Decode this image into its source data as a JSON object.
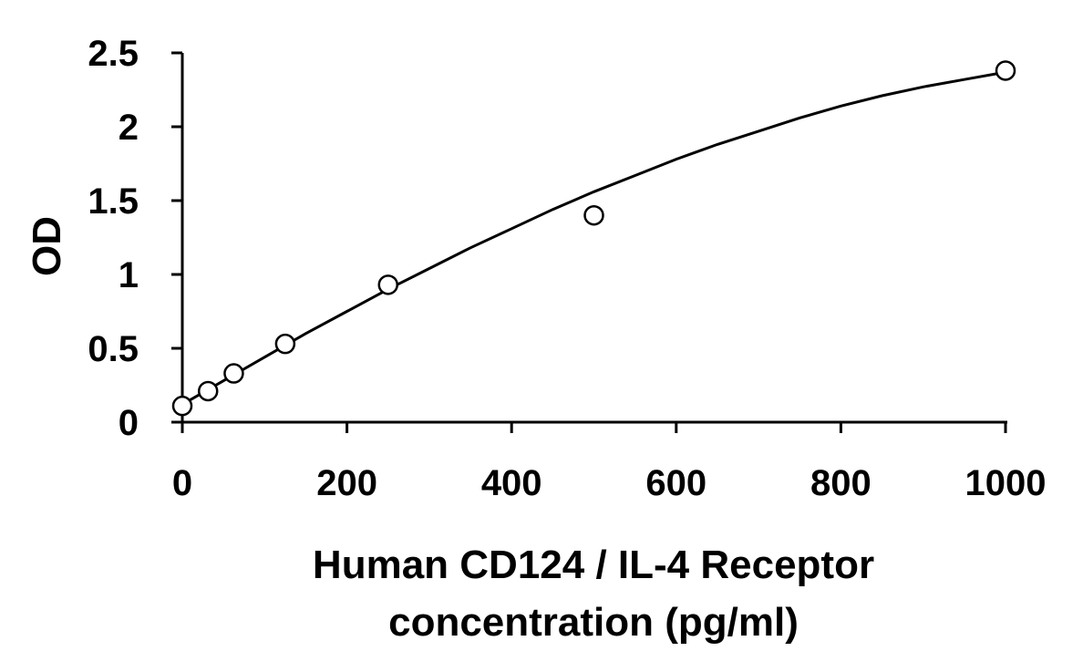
{
  "chart_data": {
    "type": "scatter",
    "title": "",
    "xlabel": [
      "Human CD124 / IL-4 Receptor",
      "concentration (pg/ml)"
    ],
    "ylabel": "OD",
    "xlim": [
      0,
      1000
    ],
    "ylim": [
      0,
      2.5
    ],
    "x_ticks": [
      0,
      200,
      400,
      600,
      800,
      1000
    ],
    "x_tick_labels": [
      "0",
      "200",
      "400",
      "600",
      "800",
      "1000"
    ],
    "y_ticks": [
      0,
      0.5,
      1,
      1.5,
      2,
      2.5
    ],
    "y_tick_labels": [
      "0",
      "0.5",
      "1",
      "1.5",
      "2",
      "2.5"
    ],
    "grid": false,
    "legend": "none",
    "series": [
      {
        "marker": "open-circle",
        "x": [
          0,
          31.25,
          62.5,
          125,
          250,
          500,
          1000
        ],
        "y": [
          0.11,
          0.21,
          0.33,
          0.53,
          0.93,
          1.4,
          2.38
        ]
      }
    ],
    "fit_curve": {
      "type": "smooth",
      "x": [
        0,
        50,
        100,
        150,
        200,
        250,
        300,
        350,
        400,
        450,
        500,
        550,
        600,
        650,
        700,
        750,
        800,
        850,
        900,
        950,
        1000
      ],
      "y": [
        0.12,
        0.28,
        0.44,
        0.6,
        0.75,
        0.9,
        1.04,
        1.18,
        1.31,
        1.44,
        1.56,
        1.67,
        1.78,
        1.88,
        1.97,
        2.06,
        2.14,
        2.21,
        2.27,
        2.32,
        2.37
      ]
    }
  }
}
